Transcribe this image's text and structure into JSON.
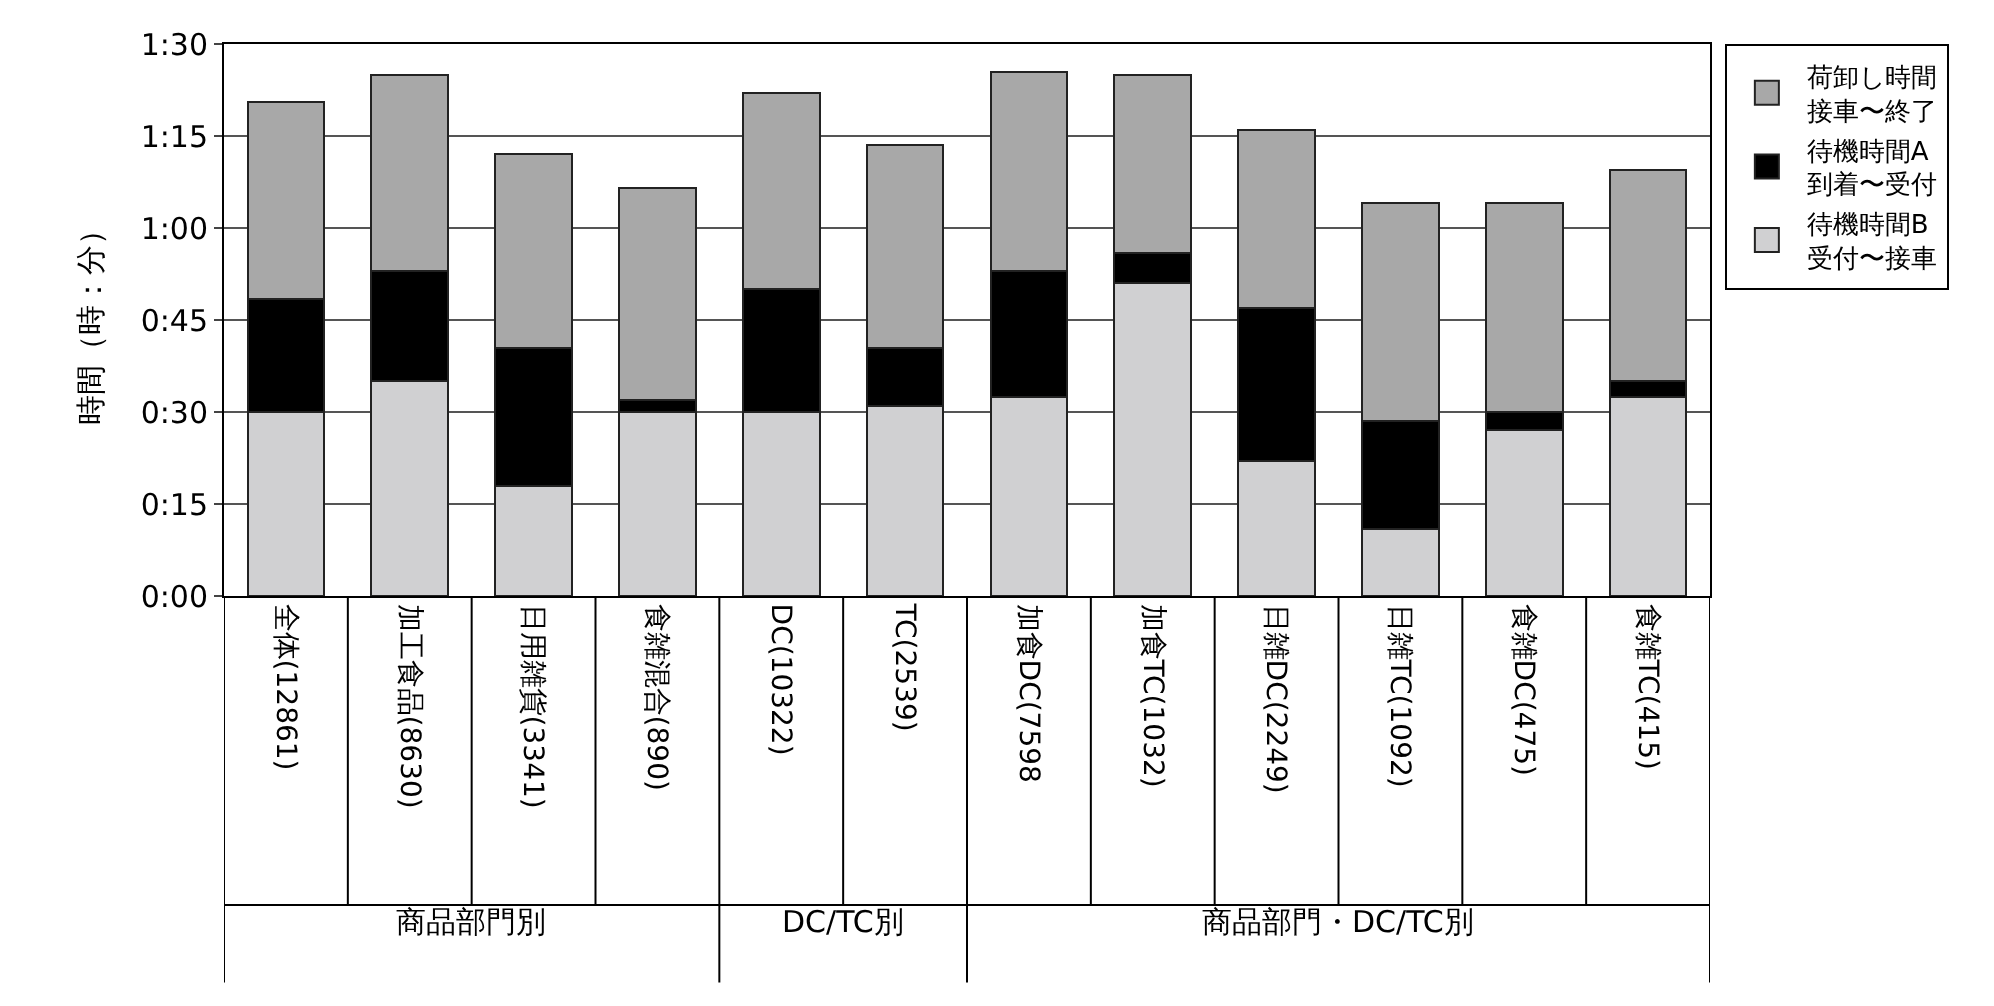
{
  "chart_data": {
    "type": "bar",
    "stacked": true,
    "ylabel": "時間（時：分）",
    "categories": [
      "全体(12861)",
      "加工食品(8630)",
      "日用雑貨(3341)",
      "食雑混合(890)",
      "DC(10322)",
      "TC(2539)",
      "加食DC(7598",
      "加食TC(1032)",
      "日雑DC(2249)",
      "日雑TC(1092)",
      "食雑DC(475)",
      "食雑TC(415)"
    ],
    "series": [
      {
        "name": "待機時間B受付〜接車",
        "color": "#d0d0d2",
        "values": [
          30,
          35,
          18,
          30,
          30,
          31,
          32.5,
          51,
          22,
          11,
          27,
          32.5
        ]
      },
      {
        "name": "待機時間A到着〜受付",
        "color": "#000000",
        "values": [
          18.5,
          18,
          22.5,
          2,
          20,
          9.5,
          20.5,
          5,
          25,
          17.5,
          3,
          2.5
        ]
      },
      {
        "name": "荷卸し時間接車〜終了",
        "color": "#a8a8a8",
        "values": [
          32,
          32,
          31.5,
          34.5,
          32,
          33,
          32.5,
          29,
          29,
          35.5,
          34,
          34.5
        ]
      }
    ],
    "ylim": [
      0,
      90
    ],
    "yticks": [
      {
        "value": 0,
        "label": "0:00"
      },
      {
        "value": 15,
        "label": "0:15"
      },
      {
        "value": 30,
        "label": "0:30"
      },
      {
        "value": 45,
        "label": "0:45"
      },
      {
        "value": 60,
        "label": "1:00"
      },
      {
        "value": 75,
        "label": "1:15"
      },
      {
        "value": 90,
        "label": "1:30"
      }
    ],
    "grid": "y",
    "legend": "top right",
    "annotations": [
      "商品部門別",
      "DC/TC別",
      "商品部門・DC/TC別"
    ]
  }
}
